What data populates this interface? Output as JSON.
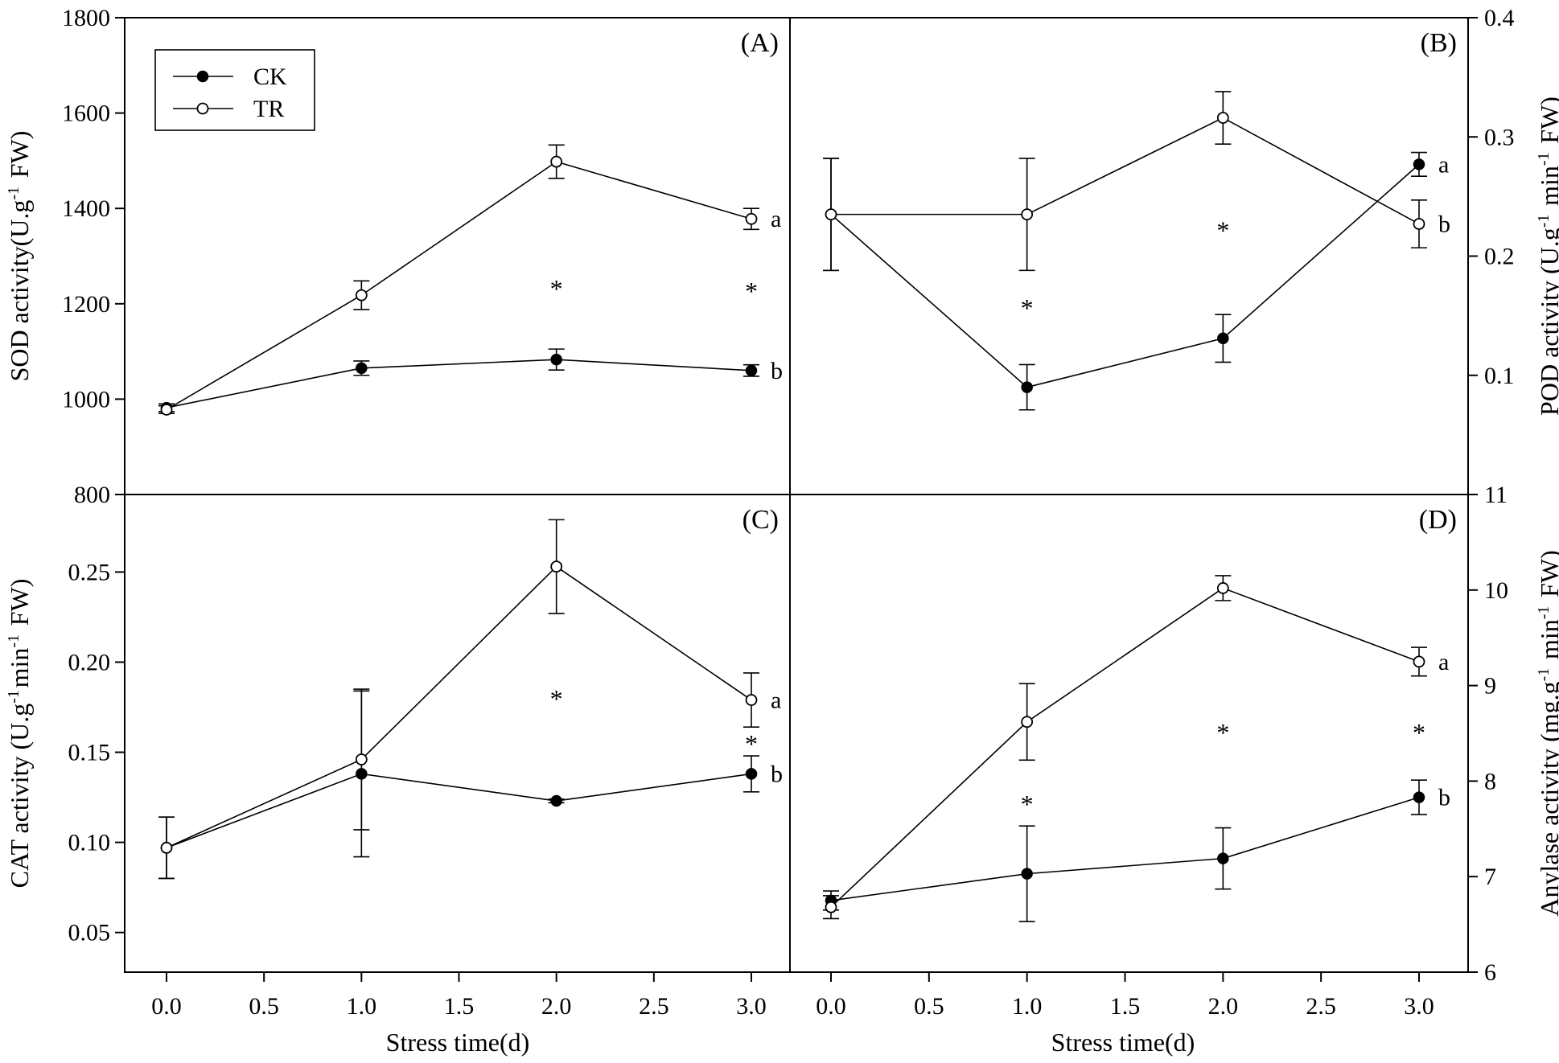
{
  "figure": {
    "xlabel": "Stress time(d)",
    "legend": [
      {
        "name": "CK",
        "marker": "filled-circle"
      },
      {
        "name": "TR",
        "marker": "open-circle"
      }
    ]
  },
  "chart_data": [
    {
      "panel": "A",
      "label": "(A)",
      "type": "line",
      "ylabel": "SOD activity(U.g⁻¹ FW)",
      "y_axis_side": "left",
      "xlim": [
        -0.2,
        3.2
      ],
      "ylim": [
        800,
        1800
      ],
      "x_ticks": [
        "0.0",
        "0.5",
        "1.0",
        "1.5",
        "2.0",
        "2.5",
        "3.0"
      ],
      "x_tick_values": [
        0,
        0.5,
        1,
        1.5,
        2,
        2.5,
        3
      ],
      "y_ticks": [
        800,
        1000,
        1200,
        1400,
        1600,
        1800
      ],
      "y_tick_labels": [
        "800",
        "1000",
        "1200",
        "1400",
        "1600",
        "1800"
      ],
      "x": [
        0,
        1,
        2,
        3
      ],
      "series": [
        {
          "name": "CK",
          "values": [
            982,
            1065,
            1083,
            1060
          ],
          "errors": [
            8,
            15,
            22,
            12
          ],
          "end_label": "b"
        },
        {
          "name": "TR",
          "values": [
            978,
            1218,
            1498,
            1378
          ],
          "errors": [
            8,
            30,
            35,
            22
          ],
          "end_label": "a"
        }
      ],
      "annotations": [
        {
          "x": 2,
          "y": 1240,
          "text": "*"
        },
        {
          "x": 3,
          "y": 1235,
          "text": "*"
        }
      ],
      "show_legend": true,
      "legend_position": "top-left"
    },
    {
      "panel": "B",
      "label": "(B)",
      "type": "line",
      "ylabel": "POD activity (U.g⁻¹ min⁻¹ FW)",
      "y_axis_side": "right",
      "xlim": [
        -0.2,
        3.2
      ],
      "ylim": [
        0,
        0.4
      ],
      "x_ticks": [
        "0.0",
        "0.5",
        "1.0",
        "1.5",
        "2.0",
        "2.5",
        "3.0"
      ],
      "x_tick_values": [
        0,
        0.5,
        1,
        1.5,
        2,
        2.5,
        3
      ],
      "y_ticks": [
        0.1,
        0.2,
        0.3,
        0.4
      ],
      "y_tick_labels": [
        "0.1",
        "0.2",
        "0.3",
        "0.4"
      ],
      "x": [
        0,
        1,
        2,
        3
      ],
      "series": [
        {
          "name": "CK",
          "values": [
            0.235,
            0.09,
            0.131,
            0.277
          ],
          "errors": [
            0.047,
            0.019,
            0.02,
            0.01
          ],
          "end_label": "a"
        },
        {
          "name": "TR",
          "values": [
            0.235,
            0.235,
            0.316,
            0.227
          ],
          "errors": [
            0.047,
            0.047,
            0.022,
            0.02
          ],
          "end_label": "b"
        }
      ],
      "annotations": [
        {
          "x": 1,
          "y": 0.16,
          "text": "*"
        },
        {
          "x": 2,
          "y": 0.225,
          "text": "*"
        }
      ],
      "show_legend": false
    },
    {
      "panel": "C",
      "label": "(C)",
      "type": "line",
      "ylabel": "CAT activity (U.g⁻¹min⁻¹ FW)",
      "y_axis_side": "left",
      "xlim": [
        -0.2,
        3.2
      ],
      "ylim": [
        0.028,
        0.293
      ],
      "x_ticks": [
        "0.0",
        "0.5",
        "1.0",
        "1.5",
        "2.0",
        "2.5",
        "3.0"
      ],
      "x_tick_values": [
        0,
        0.5,
        1,
        1.5,
        2,
        2.5,
        3
      ],
      "y_ticks": [
        0.05,
        0.1,
        0.15,
        0.2,
        0.25
      ],
      "y_tick_labels": [
        "0.05",
        "0.10",
        "0.15",
        "0.20",
        "0.25"
      ],
      "x": [
        0,
        1,
        2,
        3
      ],
      "series": [
        {
          "name": "CK",
          "values": [
            0.097,
            0.138,
            0.123,
            0.138
          ],
          "errors": [
            0.017,
            0.046,
            0.001,
            0.01
          ],
          "end_label": "b"
        },
        {
          "name": "TR",
          "values": [
            0.097,
            0.146,
            0.253,
            0.179
          ],
          "errors": [
            0.017,
            0.039,
            0.026,
            0.015
          ],
          "end_label": "a"
        }
      ],
      "annotations": [
        {
          "x": 2,
          "y": 0.182,
          "text": "*"
        },
        {
          "x": 3,
          "y": 0.157,
          "text": "*"
        }
      ],
      "show_legend": false
    },
    {
      "panel": "D",
      "label": "(D)",
      "type": "line",
      "ylabel": "Anylase activity (mg.g⁻¹ min⁻¹ FW)",
      "y_axis_side": "right",
      "xlim": [
        -0.2,
        3.2
      ],
      "ylim": [
        6,
        11
      ],
      "x_ticks": [
        "0.0",
        "0.5",
        "1.0",
        "1.5",
        "2.0",
        "2.5",
        "3.0"
      ],
      "x_tick_values": [
        0,
        0.5,
        1,
        1.5,
        2,
        2.5,
        3
      ],
      "y_ticks": [
        6,
        7,
        8,
        9,
        10,
        11
      ],
      "y_tick_labels": [
        "6",
        "7",
        "8",
        "9",
        "10",
        "11"
      ],
      "x": [
        0,
        1,
        2,
        3
      ],
      "series": [
        {
          "name": "CK",
          "values": [
            6.75,
            7.03,
            7.19,
            7.83
          ],
          "errors": [
            0.1,
            0.5,
            0.32,
            0.18
          ],
          "end_label": "b"
        },
        {
          "name": "TR",
          "values": [
            6.68,
            8.62,
            10.02,
            9.25
          ],
          "errors": [
            0.12,
            0.4,
            0.13,
            0.15
          ],
          "end_label": "a"
        }
      ],
      "annotations": [
        {
          "x": 1,
          "y": 7.8,
          "text": "*"
        },
        {
          "x": 2,
          "y": 8.55,
          "text": "*"
        },
        {
          "x": 3,
          "y": 8.55,
          "text": "*"
        }
      ],
      "show_legend": false
    }
  ]
}
